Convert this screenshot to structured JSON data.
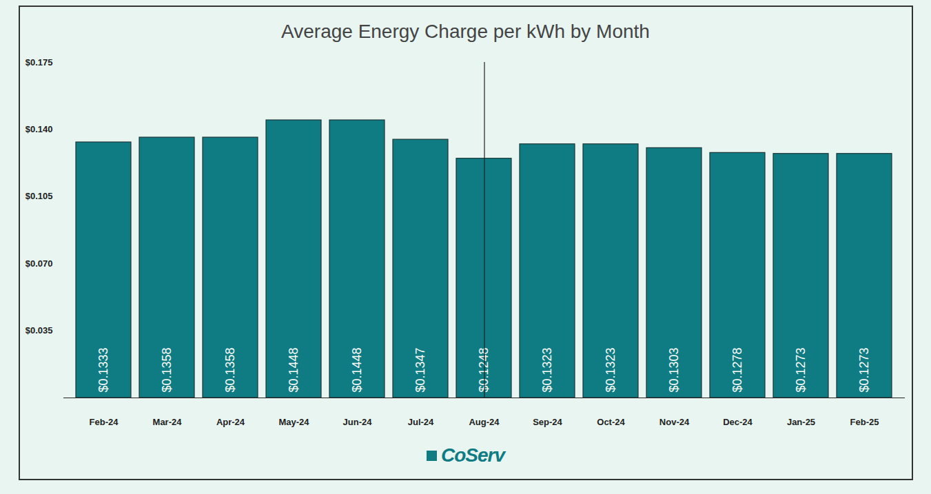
{
  "chart_data": {
    "type": "bar",
    "title": "Average Energy Charge per kWh by Month",
    "caption": "CoServ",
    "categories": [
      "Feb-24",
      "Mar-24",
      "Apr-24",
      "May-24",
      "Jun-24",
      "Jul-24",
      "Aug-24",
      "Sep-24",
      "Oct-24",
      "Nov-24",
      "Dec-24",
      "Jan-25",
      "Feb-25"
    ],
    "values": [
      0.1333,
      0.1358,
      0.1358,
      0.1448,
      0.1448,
      0.1347,
      0.1248,
      0.1323,
      0.1323,
      0.1303,
      0.1278,
      0.1273,
      0.1273
    ],
    "value_labels": [
      "$0.1333",
      "$0.1358",
      "$0.1358",
      "$0.1448",
      "$0.1448",
      "$0.1347",
      "$0.1248",
      "$0.1323",
      "$0.1323",
      "$0.1303",
      "$0.1278",
      "$0.1273",
      "$0.1273"
    ],
    "color": "#0e7c82",
    "ylim": [
      0,
      0.175
    ],
    "yticks": [
      {
        "value": 0.035,
        "label": "$0.035"
      },
      {
        "value": 0.07,
        "label": "$0.070"
      },
      {
        "value": 0.105,
        "label": "$0.105"
      },
      {
        "value": 0.14,
        "label": "$0.140"
      },
      {
        "value": 0.175,
        "label": "$0.175"
      }
    ],
    "grid": false,
    "data_labels": true
  }
}
